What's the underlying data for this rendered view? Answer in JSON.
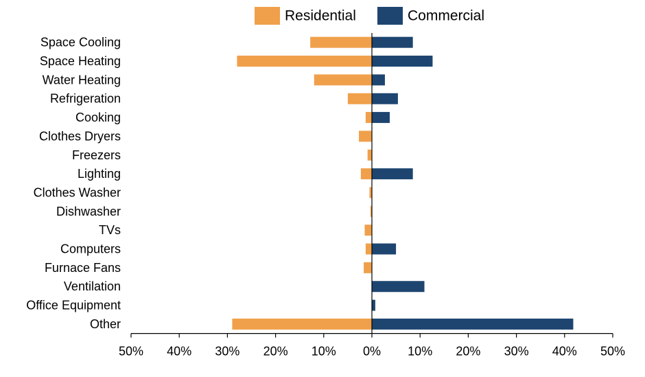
{
  "chart_data": {
    "type": "bar",
    "orientation": "horizontal-diverging",
    "title": "",
    "xlabel": "",
    "ylabel": "",
    "xlim": [
      -50,
      50
    ],
    "x_ticks": [
      -50,
      -40,
      -30,
      -20,
      -10,
      0,
      10,
      20,
      30,
      40,
      50
    ],
    "x_tick_labels": [
      "50%",
      "40%",
      "30%",
      "20%",
      "10%",
      "0%",
      "10%",
      "20%",
      "30%",
      "40%",
      "50%"
    ],
    "legend_position": "top-center",
    "grid": false,
    "categories": [
      "Space Cooling",
      "Space Heating",
      "Water Heating",
      "Refrigeration",
      "Cooking",
      "Clothes Dryers",
      "Freezers",
      "Lighting",
      "Clothes Washer",
      "Dishwasher",
      "TVs",
      "Computers",
      "Furnace Fans",
      "Ventilation",
      "Office Equipment",
      "Other"
    ],
    "series": [
      {
        "name": "Residential",
        "color": "#F0A04B",
        "direction": "left",
        "values": [
          12.8,
          28.0,
          12.0,
          5.0,
          1.3,
          2.7,
          0.9,
          2.3,
          0.5,
          0.3,
          1.5,
          1.3,
          1.7,
          0,
          0,
          29.0
        ]
      },
      {
        "name": "Commercial",
        "color": "#1D4570",
        "direction": "right",
        "values": [
          8.5,
          12.6,
          2.7,
          5.4,
          3.7,
          0,
          0,
          8.5,
          0,
          0,
          0,
          5.0,
          0,
          10.9,
          0.7,
          41.8
        ]
      }
    ]
  }
}
